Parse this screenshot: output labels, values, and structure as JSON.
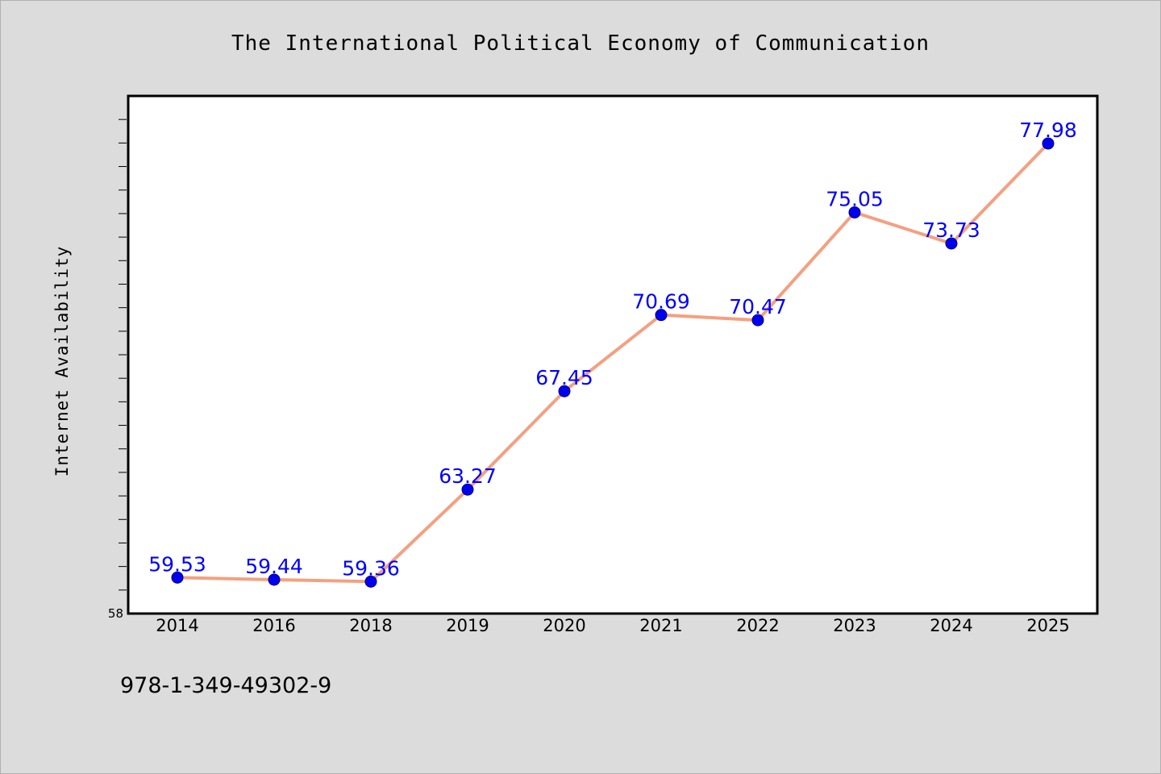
{
  "footer": {
    "isbn": "978-1-349-49302-9"
  },
  "colors": {
    "background": "#dcdcdc",
    "plot_background": "#ffffff",
    "line": "#f4a080",
    "marker": "#0000ee",
    "data_label": "#0000ff"
  },
  "chart_data": {
    "type": "line",
    "title": "The International Political Economy of Communication",
    "xlabel": "",
    "ylabel": "Internet Availability",
    "categories": [
      "2014",
      "2016",
      "2018",
      "2019",
      "2020",
      "2021",
      "2022",
      "2023",
      "2024",
      "2025"
    ],
    "values": [
      59.53,
      59.44,
      59.36,
      63.27,
      67.45,
      70.69,
      70.47,
      75.05,
      73.73,
      77.98
    ],
    "data_labels": [
      "59.53",
      "59.44",
      "59.36",
      "63.27",
      "67.45",
      "70.69",
      "70.47",
      "75.05",
      "73.73",
      "77.98"
    ],
    "ylim": [
      58,
      80
    ],
    "y_tick_labels": [
      "58"
    ],
    "grid": false,
    "legend": "none"
  }
}
